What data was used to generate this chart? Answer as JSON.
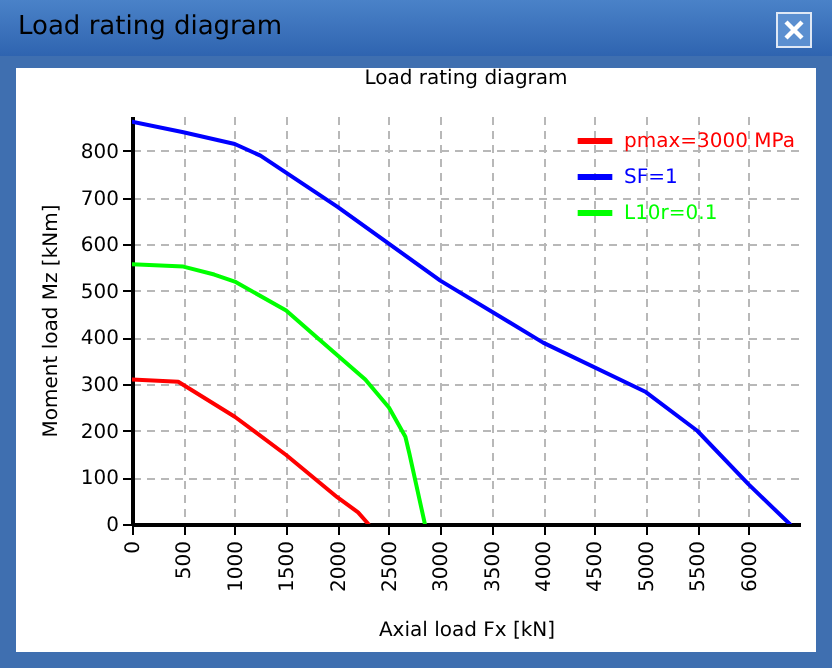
{
  "chart_data": {
    "type": "line",
    "title": "Load rating diagram",
    "xlabel": "Axial load Fx [kN]",
    "ylabel": "Moment load Mz [kNm]",
    "annotations": [
      "Load rating diagram"
    ],
    "xlim": [
      0,
      6500
    ],
    "xticks": [
      0,
      500,
      1000,
      1500,
      2000,
      2500,
      3000,
      3500,
      4000,
      4500,
      5000,
      5500,
      6000
    ],
    "ylim": [
      0,
      875
    ],
    "yticks": [
      0,
      100,
      200,
      300,
      400,
      500,
      600,
      700,
      800
    ],
    "grid": true,
    "legend": "top right",
    "line_style": "solid",
    "marker": "none",
    "series": [
      {
        "name": "pmax=3000 MPa",
        "color": "#ff0000",
        "x": [
          0,
          450,
          1000,
          1500,
          2000,
          2200,
          2300
        ],
        "values": [
          310,
          305,
          230,
          148,
          57,
          25,
          0
        ]
      },
      {
        "name": "SF=1",
        "color": "#0000ff",
        "x": [
          0,
          500,
          1000,
          1250,
          2000,
          3000,
          4000,
          5000,
          5500,
          6000,
          6400
        ],
        "values": [
          863,
          840,
          815,
          790,
          680,
          522,
          389,
          283,
          200,
          85,
          0
        ]
      },
      {
        "name": "L10r=0.1",
        "color": "#00ff00",
        "x": [
          0,
          500,
          800,
          1000,
          1500,
          1800,
          2270,
          2500,
          2660,
          2700,
          2850
        ],
        "values": [
          557,
          552,
          535,
          520,
          458,
          400,
          310,
          250,
          187,
          150,
          0
        ]
      }
    ]
  }
}
